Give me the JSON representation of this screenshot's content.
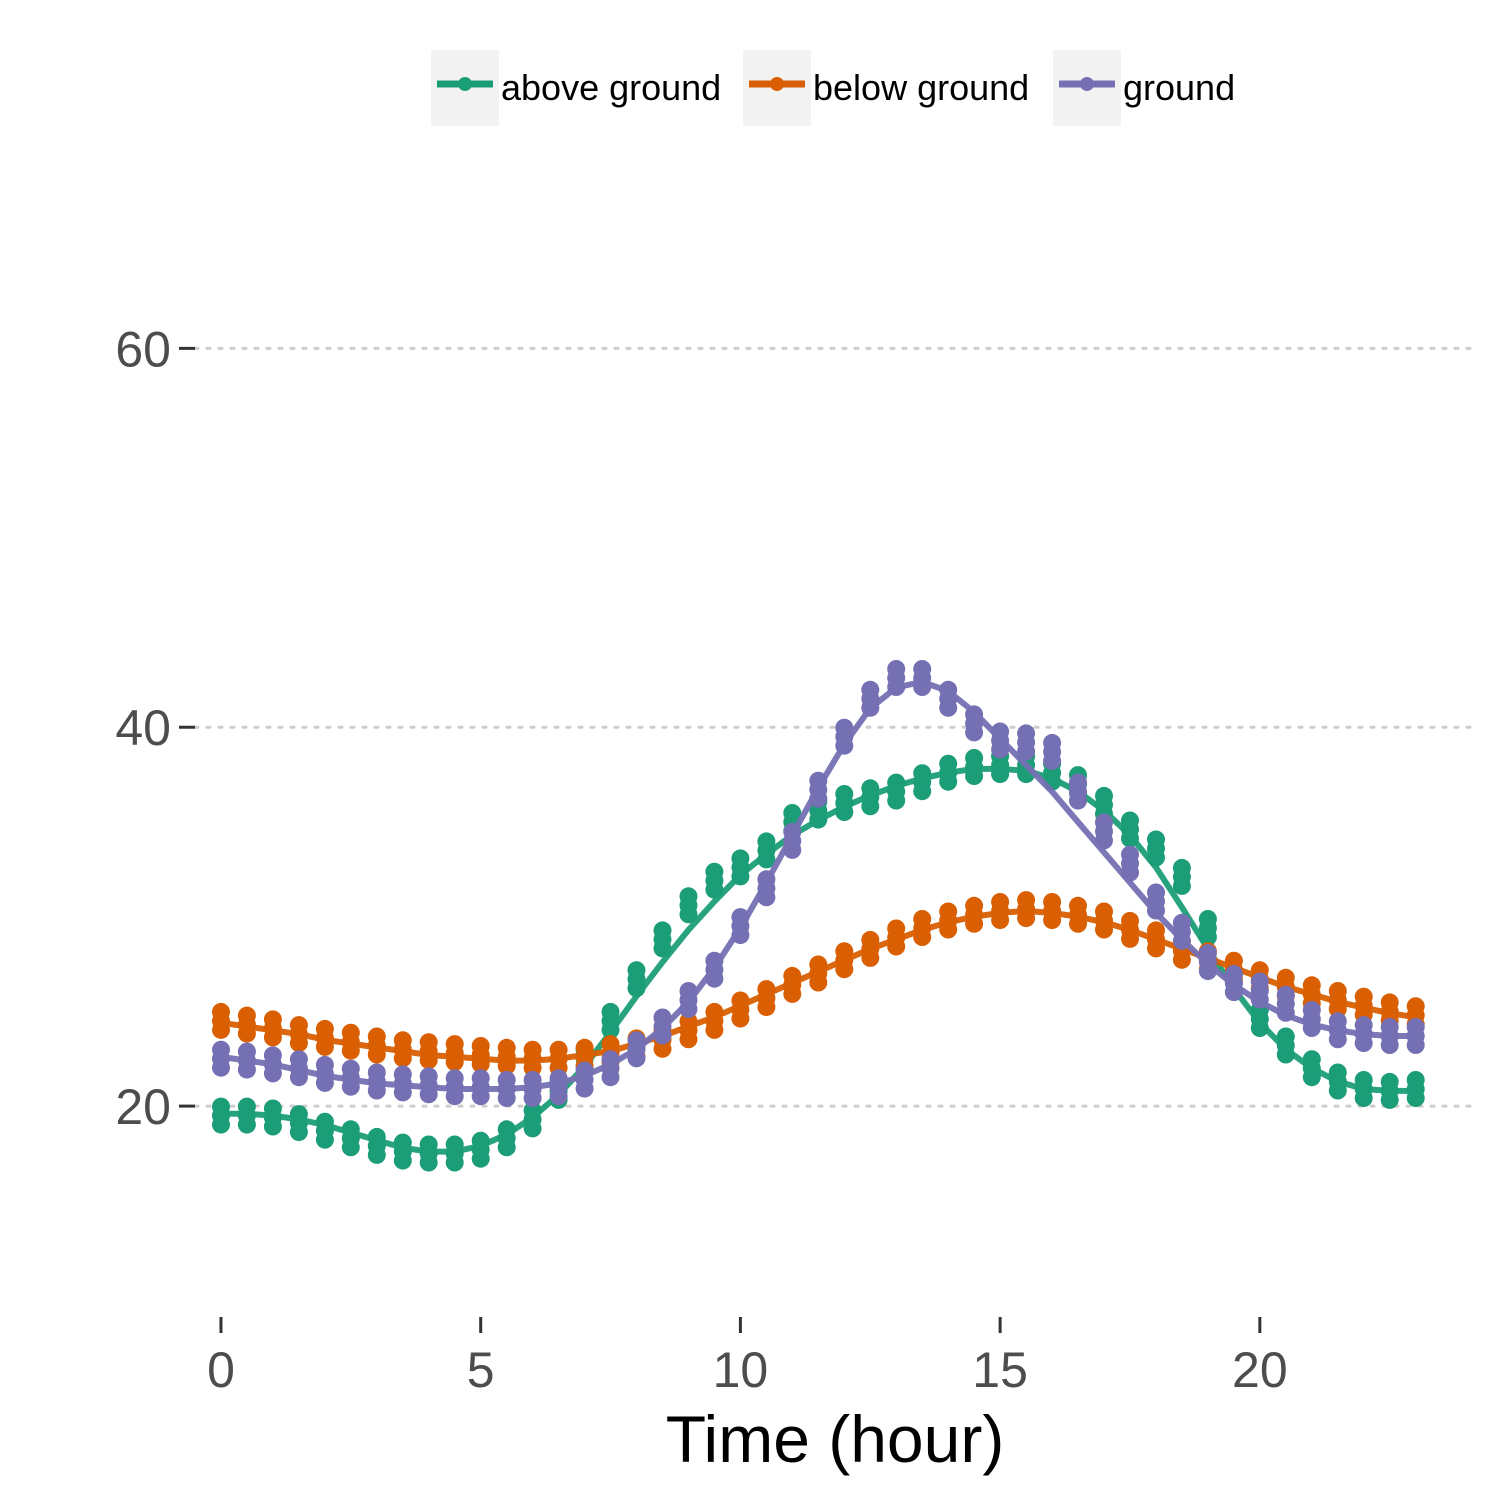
{
  "chart_data": {
    "type": "line",
    "title": "",
    "xlabel": "Time (hour)",
    "ylabel": "",
    "xlim": [
      -0.5,
      24.2
    ],
    "ylim": [
      9.5,
      71
    ],
    "x_ticks": [
      0,
      5,
      10,
      15,
      20
    ],
    "y_ticks": [
      20,
      40,
      60
    ],
    "grid": "horizontal dotted major lines",
    "legend_position": "top",
    "colors": {
      "above ground": "#1b9e77",
      "below ground": "#d95f02",
      "ground": "#7570b3",
      "legend_key_bg": "#f2f2f2",
      "grid": "#cccccc",
      "tick": "#333333"
    },
    "legend": [
      "above ground",
      "below ground",
      "ground"
    ],
    "series": [
      {
        "name": "above ground",
        "x": [
          0,
          0.5,
          1,
          1.5,
          2,
          2.5,
          3,
          3.5,
          4,
          4.5,
          5,
          5.5,
          6,
          6.5,
          7,
          7.5,
          8,
          8.5,
          9,
          9.5,
          10,
          10.5,
          11,
          11.5,
          12,
          12.5,
          13,
          13.5,
          14,
          14.5,
          15,
          15.5,
          16,
          16.5,
          17,
          17.5,
          18,
          18.5,
          19,
          19.5,
          20,
          20.5,
          21,
          21.5,
          22,
          22.5,
          23
        ],
        "raw": [
          19.5,
          19.5,
          19.4,
          19.1,
          18.7,
          18.3,
          17.9,
          17.6,
          17.5,
          17.5,
          17.7,
          18.3,
          19.3,
          20.8,
          22.5,
          24.5,
          26.7,
          28.8,
          30.6,
          31.9,
          32.6,
          33.5,
          35.0,
          35.6,
          36.0,
          36.3,
          36.6,
          37.1,
          37.6,
          37.9,
          38.0,
          38.0,
          37.6,
          37.0,
          35.9,
          34.6,
          33.6,
          32.1,
          29.4,
          26.5,
          24.6,
          23.2,
          22.0,
          21.3,
          20.9,
          20.8,
          20.9
        ],
        "smooth": [
          19.6,
          19.6,
          19.5,
          19.3,
          19.0,
          18.6,
          18.2,
          17.8,
          17.6,
          17.6,
          17.9,
          18.5,
          19.4,
          20.6,
          22.1,
          23.9,
          25.8,
          27.6,
          29.3,
          30.8,
          32.2,
          33.3,
          34.3,
          35.1,
          35.8,
          36.4,
          36.9,
          37.3,
          37.6,
          37.8,
          37.8,
          37.7,
          37.3,
          36.6,
          35.6,
          34.3,
          32.6,
          30.5,
          28.3,
          26.2,
          24.4,
          23.0,
          22.0,
          21.3,
          20.9,
          20.8,
          20.8
        ]
      },
      {
        "name": "below ground",
        "x": [
          0,
          0.5,
          1,
          1.5,
          2,
          2.5,
          3,
          3.5,
          4,
          4.5,
          5,
          5.5,
          6,
          6.5,
          7,
          7.5,
          8,
          8.5,
          9,
          9.5,
          10,
          10.5,
          11,
          11.5,
          12,
          12.5,
          13,
          13.5,
          14,
          14.5,
          15,
          15.5,
          16,
          16.5,
          17,
          17.5,
          18,
          18.5,
          19,
          19.5,
          20,
          20.5,
          21,
          21.5,
          22,
          22.5,
          23
        ],
        "raw": [
          24.5,
          24.3,
          24.1,
          23.8,
          23.6,
          23.4,
          23.2,
          23.0,
          22.9,
          22.8,
          22.7,
          22.6,
          22.5,
          22.5,
          22.6,
          22.8,
          23.1,
          23.5,
          24.0,
          24.5,
          25.1,
          25.7,
          26.4,
          27.0,
          27.7,
          28.3,
          28.9,
          29.4,
          29.8,
          30.1,
          30.3,
          30.4,
          30.3,
          30.1,
          29.8,
          29.3,
          28.8,
          28.2,
          27.7,
          27.2,
          26.7,
          26.3,
          25.9,
          25.6,
          25.3,
          25.0,
          24.8
        ],
        "smooth": [
          24.4,
          24.2,
          24.0,
          23.8,
          23.5,
          23.3,
          23.1,
          22.9,
          22.7,
          22.6,
          22.5,
          22.4,
          22.4,
          22.5,
          22.7,
          22.9,
          23.3,
          23.7,
          24.2,
          24.7,
          25.3,
          25.9,
          26.5,
          27.1,
          27.7,
          28.3,
          28.8,
          29.3,
          29.7,
          30.0,
          30.2,
          30.3,
          30.2,
          30.0,
          29.7,
          29.3,
          28.8,
          28.3,
          27.8,
          27.3,
          26.8,
          26.3,
          25.9,
          25.5,
          25.2,
          24.9,
          24.7
        ]
      },
      {
        "name": "ground",
        "x": [
          0,
          0.5,
          1,
          1.5,
          2,
          2.5,
          3,
          3.5,
          4,
          4.5,
          5,
          5.5,
          6,
          6.5,
          7,
          7.5,
          8,
          8.5,
          9,
          9.5,
          10,
          10.5,
          11,
          11.5,
          12,
          12.5,
          13,
          13.5,
          14,
          14.5,
          15,
          15.5,
          16,
          16.5,
          17,
          17.5,
          18,
          18.5,
          19,
          19.5,
          20,
          20.5,
          21,
          21.5,
          22,
          22.5,
          23
        ],
        "raw": [
          22.5,
          22.4,
          22.2,
          22.0,
          21.7,
          21.5,
          21.3,
          21.2,
          21.1,
          21.0,
          21.0,
          20.9,
          20.9,
          21.0,
          21.4,
          22.0,
          23.0,
          24.2,
          25.6,
          27.2,
          29.5,
          31.5,
          34.0,
          36.7,
          39.5,
          41.5,
          42.6,
          42.6,
          41.5,
          40.2,
          39.3,
          39.2,
          38.7,
          36.6,
          34.5,
          32.8,
          30.8,
          29.2,
          27.6,
          26.5,
          26.1,
          25.4,
          24.6,
          24.0,
          23.8,
          23.7,
          23.7
        ],
        "smooth": [
          22.6,
          22.4,
          22.2,
          21.9,
          21.6,
          21.4,
          21.2,
          21.1,
          21.0,
          20.9,
          20.9,
          20.9,
          21.0,
          21.2,
          21.6,
          22.2,
          23.0,
          24.1,
          25.5,
          27.3,
          29.4,
          31.8,
          34.3,
          36.8,
          39.1,
          41.0,
          42.1,
          42.4,
          41.9,
          40.8,
          39.4,
          38.0,
          36.6,
          35.0,
          33.4,
          31.8,
          30.2,
          28.8,
          27.5,
          26.4,
          25.5,
          24.8,
          24.3,
          24.0,
          23.8,
          23.7,
          23.7
        ]
      }
    ]
  }
}
